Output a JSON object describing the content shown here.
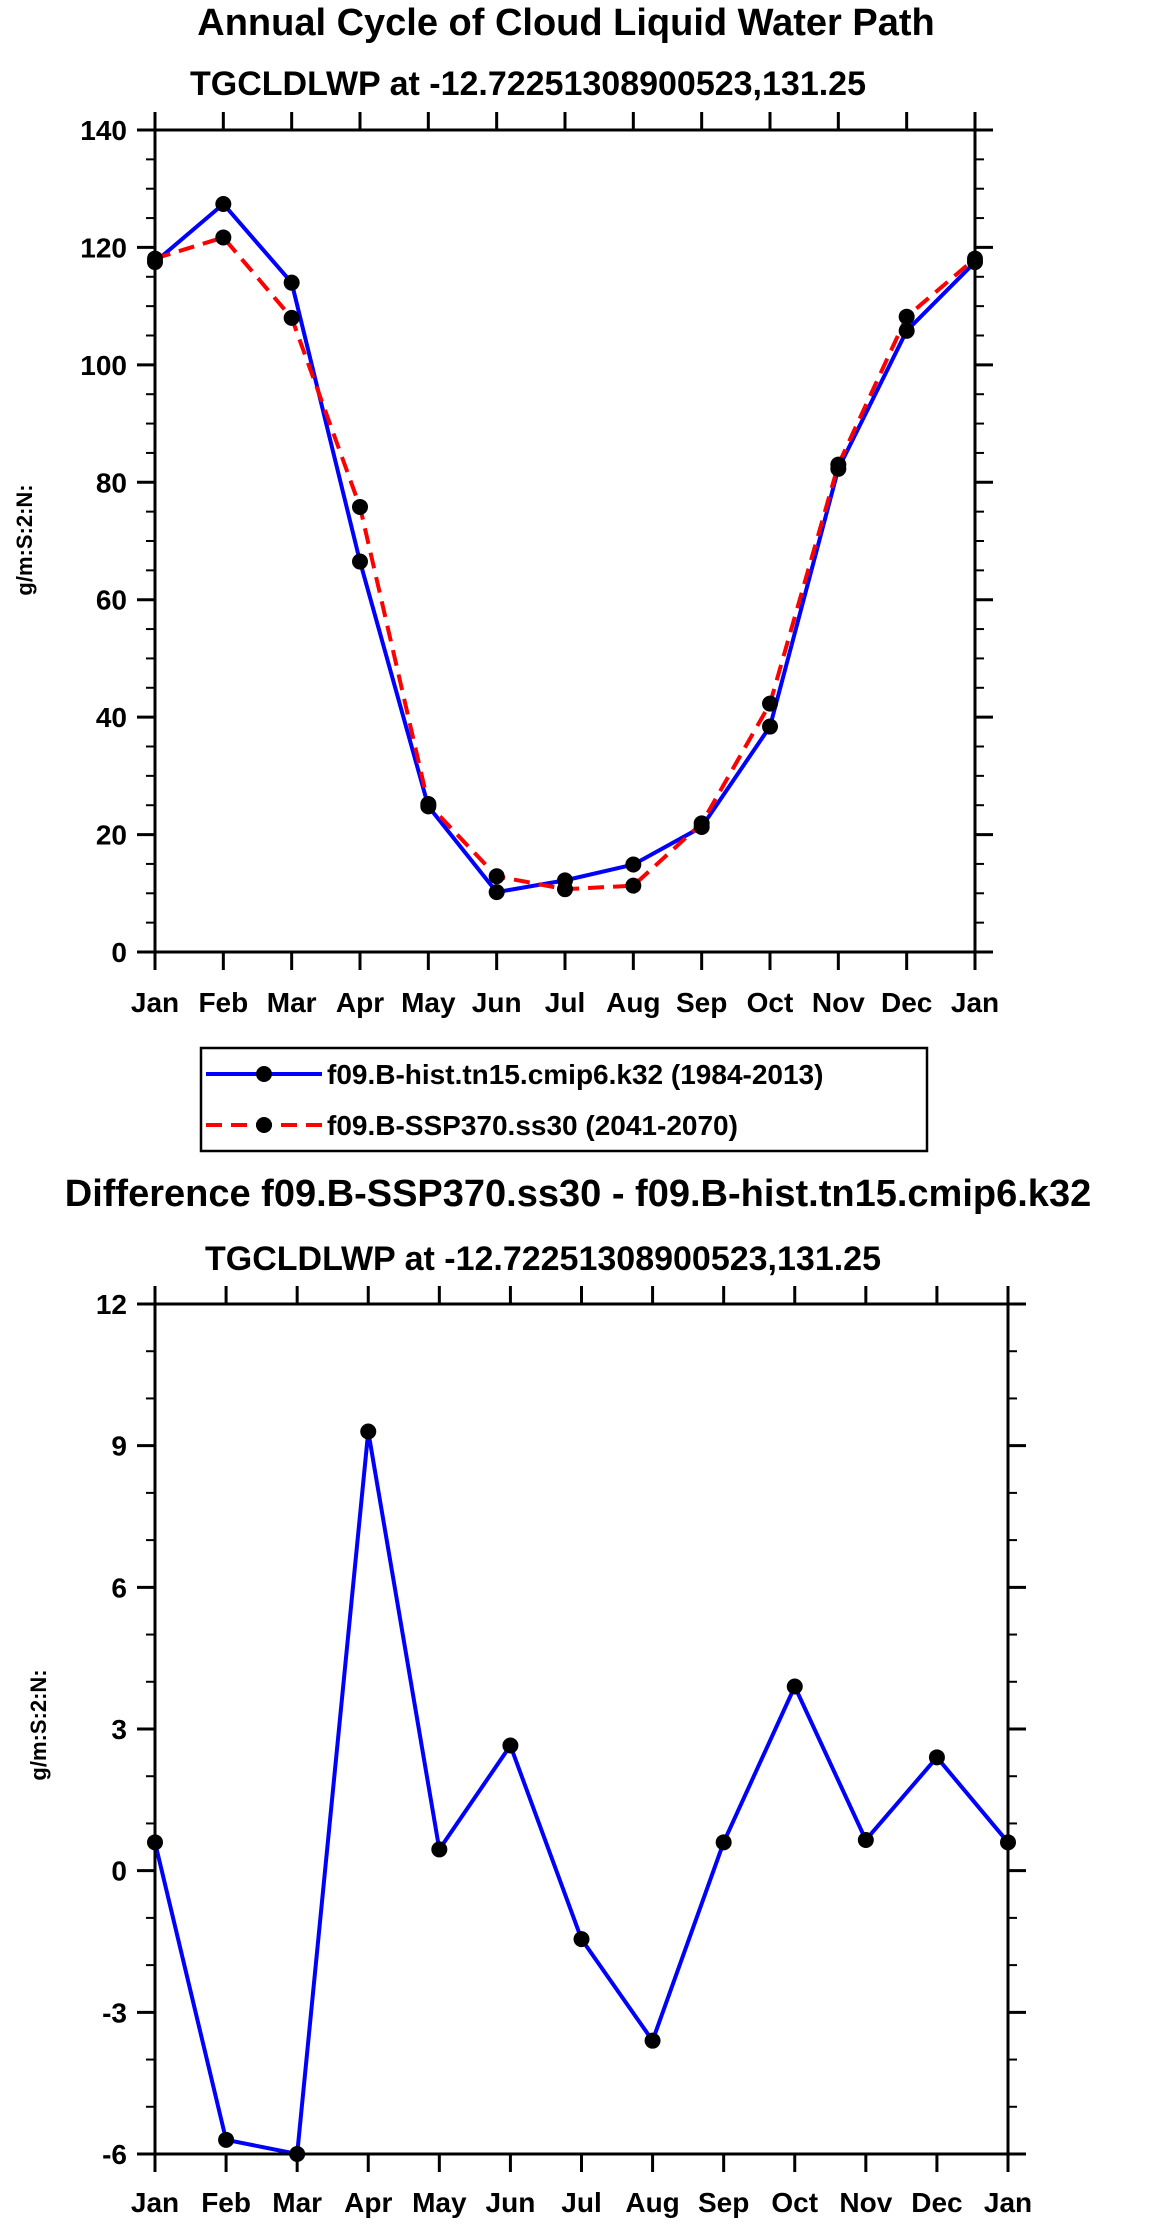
{
  "chart_data": [
    {
      "type": "line",
      "title": "Annual Cycle of Cloud Liquid Water Path",
      "subtitle": "TGCLDLWP at -12.72251308900523,131.25",
      "xlabel": "",
      "ylabel": "g/m:S:2:N:",
      "categories": [
        "Jan",
        "Feb",
        "Mar",
        "Apr",
        "May",
        "Jun",
        "Jul",
        "Aug",
        "Sep",
        "Oct",
        "Nov",
        "Dec",
        "Jan"
      ],
      "ylim": [
        0,
        140
      ],
      "yticks": [
        0,
        20,
        40,
        60,
        80,
        100,
        120,
        140
      ],
      "yticks_text": [
        "0",
        "20",
        "40",
        "60",
        "80",
        "100",
        "120",
        "140"
      ],
      "series": [
        {
          "name": "f09.B-hist.tn15.cmip6.k32 (1984-2013)",
          "color": "#0000ff",
          "style": "solid",
          "values": [
            117.5,
            127.4,
            114.0,
            66.5,
            24.8,
            10.2,
            12.2,
            14.9,
            21.3,
            38.4,
            82.3,
            105.8,
            117.5
          ]
        },
        {
          "name": "f09.B-SSP370.ss30 (2041-2070)",
          "color": "#ff0000",
          "style": "dashed",
          "values": [
            118.1,
            121.7,
            108.0,
            75.8,
            25.2,
            12.9,
            10.7,
            11.3,
            21.9,
            42.3,
            83.0,
            108.2,
            118.1
          ]
        }
      ],
      "legend": {
        "entries": [
          "f09.B-hist.tn15.cmip6.k32 (1984-2013)",
          "f09.B-SSP370.ss30 (2041-2070)"
        ],
        "position": "below-plot"
      }
    },
    {
      "type": "line",
      "title": "Difference f09.B-SSP370.ss30 - f09.B-hist.tn15.cmip6.k32",
      "subtitle": "TGCLDLWP at -12.72251308900523,131.25",
      "xlabel": "",
      "ylabel": "g/m:S:2:N:",
      "categories": [
        "Jan",
        "Feb",
        "Mar",
        "Apr",
        "May",
        "Jun",
        "Jul",
        "Aug",
        "Sep",
        "Oct",
        "Nov",
        "Dec",
        "Jan"
      ],
      "ylim": [
        -6,
        12
      ],
      "yticks": [
        -6,
        -3,
        0,
        3,
        6,
        9,
        12
      ],
      "yticks_text": [
        "-6",
        "-3",
        "0",
        "3",
        "6",
        "9",
        "12"
      ],
      "series": [
        {
          "name": "difference",
          "color": "#0000ff",
          "style": "solid",
          "values": [
            0.6,
            -5.7,
            -6.0,
            9.3,
            0.45,
            2.65,
            -1.45,
            -3.6,
            0.6,
            3.9,
            0.65,
            2.4,
            0.6
          ]
        }
      ]
    }
  ]
}
